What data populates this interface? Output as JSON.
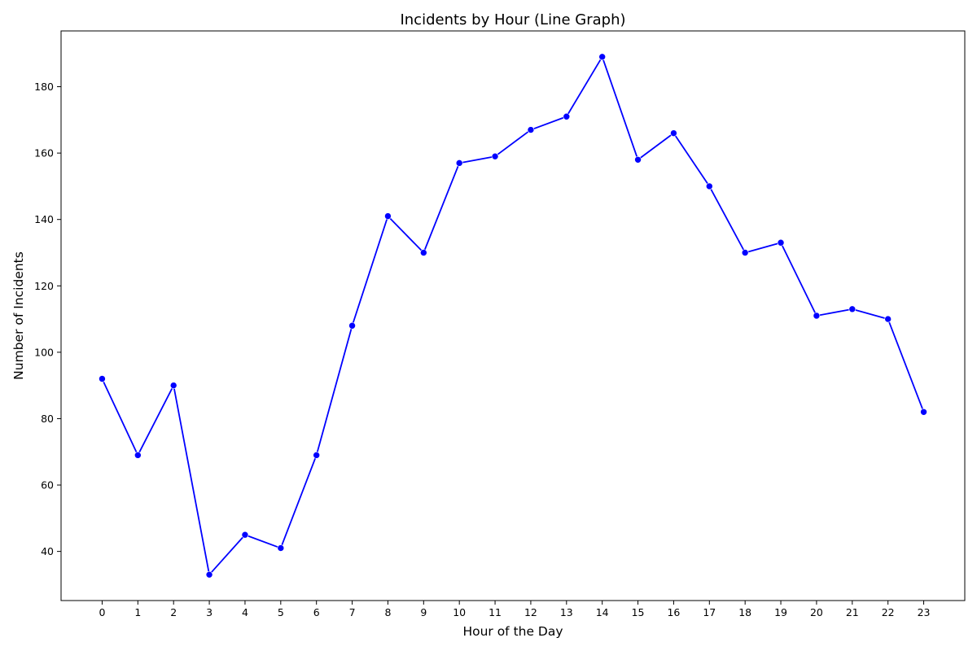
{
  "chart_data": {
    "type": "line",
    "title": "Incidents by Hour (Line Graph)",
    "xlabel": "Hour of the Day",
    "ylabel": "Number of Incidents",
    "x": [
      0,
      1,
      2,
      3,
      4,
      5,
      6,
      7,
      8,
      9,
      10,
      11,
      12,
      13,
      14,
      15,
      16,
      17,
      18,
      19,
      20,
      21,
      22,
      23
    ],
    "series": [
      {
        "values": [
          92,
          69,
          90,
          33,
          45,
          41,
          69,
          108,
          141,
          130,
          157,
          159,
          167,
          171,
          189,
          158,
          166,
          150,
          130,
          133,
          111,
          113,
          110,
          82
        ]
      }
    ],
    "xlim": [
      -1.15,
      24.15
    ],
    "ylim": [
      25.2,
      196.8
    ],
    "yticks": [
      40,
      60,
      80,
      100,
      120,
      140,
      160,
      180
    ],
    "grid": false,
    "legend": "none",
    "line_color": "#0000ff",
    "marker_color": "#0000ff"
  }
}
